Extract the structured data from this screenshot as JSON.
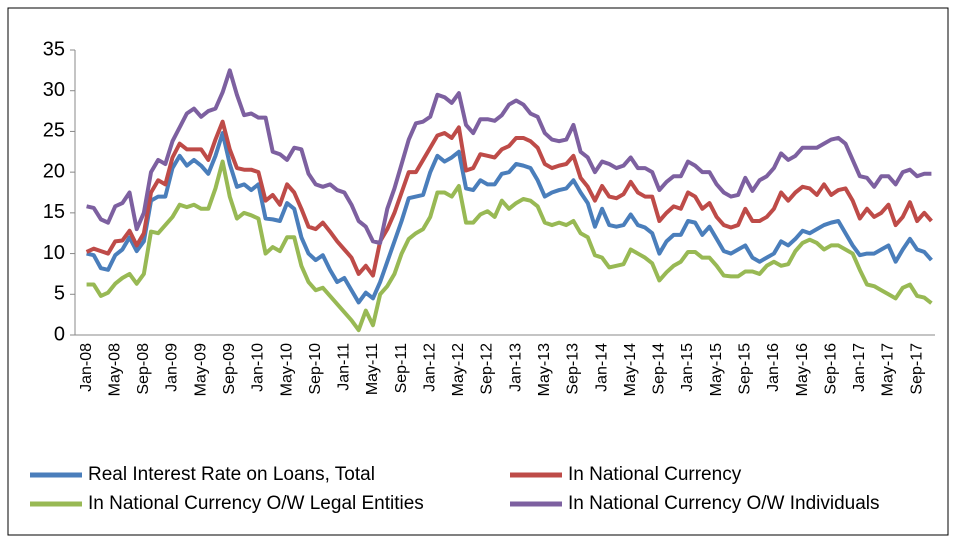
{
  "chart_data": {
    "type": "line",
    "categories": [
      "Jan-08",
      null,
      null,
      null,
      "May-08",
      null,
      null,
      null,
      "Sep-08",
      null,
      null,
      null,
      "Jan-09",
      null,
      null,
      null,
      "May-09",
      null,
      null,
      null,
      "Sep-09",
      null,
      null,
      null,
      "Jan-10",
      null,
      null,
      null,
      "May-10",
      null,
      null,
      null,
      "Sep-10",
      null,
      null,
      null,
      "Jan-11",
      null,
      null,
      null,
      "May-11",
      null,
      null,
      null,
      "Sep-11",
      null,
      null,
      null,
      "Jan-12",
      null,
      null,
      null,
      "May-12",
      null,
      null,
      null,
      "Sep-12",
      null,
      null,
      null,
      "Jan-13",
      null,
      null,
      null,
      "May-13",
      null,
      null,
      null,
      "Sep-13",
      null,
      null,
      null,
      "Jan-14",
      null,
      null,
      null,
      "May-14",
      null,
      null,
      null,
      "Sep-14",
      null,
      null,
      null,
      "Jan-15",
      null,
      null,
      null,
      "May-15",
      null,
      null,
      null,
      "Sep-15",
      null,
      null,
      null,
      "Jan-16",
      null,
      null,
      null,
      "May-16",
      null,
      null,
      null,
      "Sep-16",
      null,
      null,
      null,
      "Jan-17",
      null,
      null,
      null,
      "May-17",
      null,
      null,
      null,
      "Sep-17",
      null,
      null
    ],
    "series": [
      {
        "name": "Real Interest Rate on Loans, Total",
        "color": "#4a7ebb",
        "values": [
          10,
          9.8,
          8.2,
          8,
          9.8,
          10.5,
          12,
          10.3,
          11.5,
          16.5,
          17,
          17,
          20.5,
          22,
          20.8,
          21.5,
          20.8,
          19.8,
          22,
          24.8,
          21,
          18.2,
          18.5,
          17.8,
          18.5,
          14.3,
          14.2,
          14,
          16.2,
          15.5,
          12,
          10,
          9.2,
          9.8,
          8,
          6.5,
          7,
          5.5,
          4,
          5.2,
          4.5,
          6.5,
          9,
          11.5,
          14,
          16.8,
          17,
          17.2,
          20,
          22,
          21.3,
          21.8,
          22.5,
          18,
          17.8,
          19,
          18.5,
          18.5,
          19.8,
          20,
          21,
          20.8,
          20.5,
          19,
          17,
          17.5,
          17.8,
          18,
          19,
          17.5,
          16.2,
          13.3,
          15.5,
          13.5,
          13.3,
          13.5,
          14.8,
          13.5,
          13.2,
          12.5,
          10,
          11.5,
          12.3,
          12.3,
          14,
          13.8,
          12.3,
          13.3,
          11.8,
          10.3,
          10,
          10.5,
          11,
          9.5,
          9,
          9.5,
          10,
          11.5,
          11,
          11.8,
          12.8,
          12.5,
          13,
          13.5,
          13.8,
          14,
          12.5,
          11,
          9.8,
          10,
          10,
          10.5,
          11,
          9,
          10.5,
          11.8,
          10.5,
          10.2,
          9.2
        ]
      },
      {
        "name": "In National Currency",
        "color": "#be4b48",
        "values": [
          10.2,
          10.6,
          10.3,
          10,
          11.5,
          11.6,
          12.8,
          11,
          12.5,
          17.5,
          19,
          18.5,
          21.8,
          23.5,
          22.8,
          22.8,
          22.8,
          21.5,
          24,
          26.2,
          22.8,
          20.5,
          20.3,
          20.3,
          20,
          16.5,
          17.2,
          16,
          18.5,
          17.5,
          15.5,
          13.3,
          13,
          13.8,
          12.7,
          11.5,
          10.5,
          9.5,
          7.5,
          8.5,
          7.3,
          11.5,
          13,
          15,
          17.5,
          20,
          20,
          21.5,
          23,
          24.5,
          24.8,
          24.2,
          25.5,
          20.2,
          20.5,
          22.2,
          22,
          21.8,
          22.8,
          23.2,
          24.2,
          24.2,
          23.8,
          23,
          21,
          20.5,
          20.8,
          21,
          22,
          19.3,
          18.2,
          16.5,
          18.3,
          17,
          16.8,
          17.3,
          18.8,
          17.5,
          17,
          17,
          14,
          15,
          15.8,
          15.5,
          17.5,
          17,
          15.5,
          16.2,
          14.5,
          13.5,
          13.2,
          13.5,
          15.5,
          14,
          14,
          14.5,
          15.5,
          17.5,
          16.5,
          17.5,
          18.2,
          18,
          17.2,
          18.5,
          17.2,
          17.8,
          18,
          16.5,
          14.3,
          15.5,
          14.5,
          15,
          16,
          13.5,
          14.5,
          16.3,
          14,
          15,
          14
        ]
      },
      {
        "name": "In National Currency O/W Legal Entities",
        "color": "#98b954",
        "values": [
          6.2,
          6.2,
          4.8,
          5.2,
          6.3,
          7,
          7.5,
          6.3,
          7.5,
          12.7,
          12.5,
          13.5,
          14.5,
          16,
          15.7,
          16,
          15.5,
          15.5,
          18,
          21.3,
          17,
          14.3,
          15,
          14.7,
          14.3,
          10,
          10.8,
          10.3,
          12,
          12,
          8.5,
          6.5,
          5.5,
          5.8,
          4.8,
          3.8,
          2.8,
          1.8,
          0.6,
          3,
          1.2,
          5,
          6,
          7.5,
          10,
          11.8,
          12.5,
          13,
          14.5,
          17.5,
          17.5,
          17,
          18.3,
          13.8,
          13.8,
          14.8,
          15.2,
          14.5,
          16.5,
          15.5,
          16.2,
          16.7,
          16.5,
          15.8,
          13.8,
          13.5,
          13.8,
          13.5,
          14,
          12.5,
          12,
          9.8,
          9.5,
          8.3,
          8.5,
          8.7,
          10.5,
          10,
          9.5,
          8.8,
          6.7,
          7.7,
          8.5,
          9,
          10.2,
          10.2,
          9.5,
          9.5,
          8.5,
          7.3,
          7.2,
          7.2,
          7.8,
          7.8,
          7.5,
          8.5,
          9,
          8.5,
          8.7,
          10.3,
          11.3,
          11.7,
          11.3,
          10.5,
          11,
          11,
          10.5,
          10,
          8,
          6.2,
          6,
          5.5,
          5,
          4.5,
          5.8,
          6.2,
          4.8,
          4.6,
          3.9
        ]
      },
      {
        "name": "In National Currency O/W Individuals",
        "color": "#7d60a0",
        "values": [
          15.8,
          15.6,
          14.2,
          13.8,
          15.8,
          16.2,
          17.5,
          13,
          15,
          20,
          21.5,
          21,
          23.8,
          25.5,
          27.2,
          27.8,
          26.8,
          27.5,
          27.8,
          29.8,
          32.5,
          29.5,
          27,
          27.2,
          26.7,
          26.7,
          22.5,
          22.2,
          21.5,
          23,
          22.8,
          19.8,
          18.5,
          18.2,
          18.5,
          17.8,
          17.5,
          16,
          14,
          13.3,
          11.5,
          11.3,
          15.5,
          18,
          21,
          24,
          26,
          26.2,
          26.8,
          29.5,
          29.2,
          28.5,
          29.7,
          25.8,
          24.8,
          26.5,
          26.5,
          26.3,
          27,
          28.3,
          28.8,
          28.3,
          27.2,
          26.8,
          24.8,
          24,
          23.8,
          24,
          25.8,
          22.5,
          21.8,
          20,
          21.3,
          21,
          20.5,
          20.8,
          21.8,
          20.5,
          20.5,
          20,
          17.8,
          18.8,
          19.5,
          19.5,
          21.3,
          20.8,
          20,
          20,
          18.5,
          17.5,
          17,
          17.2,
          19.3,
          17.7,
          19,
          19.5,
          20.5,
          22.3,
          21.5,
          22,
          23,
          23,
          23,
          23.5,
          24,
          24.2,
          23.5,
          21.5,
          19.5,
          19.3,
          18.2,
          19.5,
          19.5,
          18.5,
          20,
          20.3,
          19.5,
          19.8,
          19.8
        ]
      }
    ],
    "ylim": [
      0,
      35
    ],
    "yticks": [
      0,
      5,
      10,
      15,
      20,
      25,
      30,
      35
    ],
    "grid": false
  }
}
